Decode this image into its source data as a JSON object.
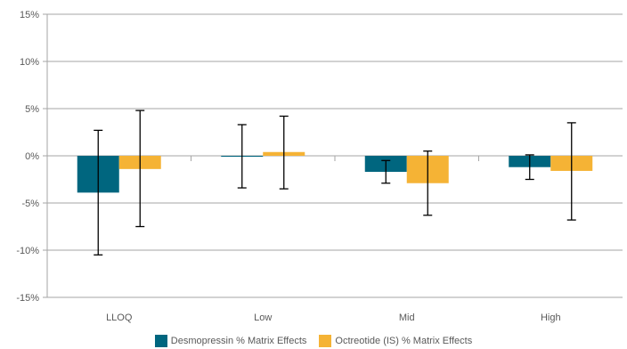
{
  "chart_data": {
    "type": "bar",
    "categories": [
      "LLOQ",
      "Low",
      "Mid",
      "High"
    ],
    "series": [
      {
        "name": "Desmopressin % Matrix Effects",
        "color": "#00667f",
        "values": [
          -3.9,
          -0.1,
          -1.7,
          -1.2
        ],
        "error_low": [
          -10.5,
          -3.4,
          -2.9,
          -2.5
        ],
        "error_high": [
          2.7,
          3.3,
          -0.5,
          0.1
        ]
      },
      {
        "name": "Octreotide (IS) % Matrix Effects",
        "color": "#f5b335",
        "values": [
          -1.4,
          0.4,
          -2.9,
          -1.6
        ],
        "error_low": [
          -7.5,
          -3.5,
          -6.3,
          -6.8
        ],
        "error_high": [
          4.8,
          4.2,
          0.5,
          3.5
        ]
      }
    ],
    "yticks": [
      "15%",
      "10%",
      "5%",
      "0%",
      "-5%",
      "-10%",
      "-15%"
    ],
    "ylim": [
      -15,
      15
    ],
    "ytick_step": 5,
    "gridlines": true,
    "legend_position": "bottom"
  }
}
